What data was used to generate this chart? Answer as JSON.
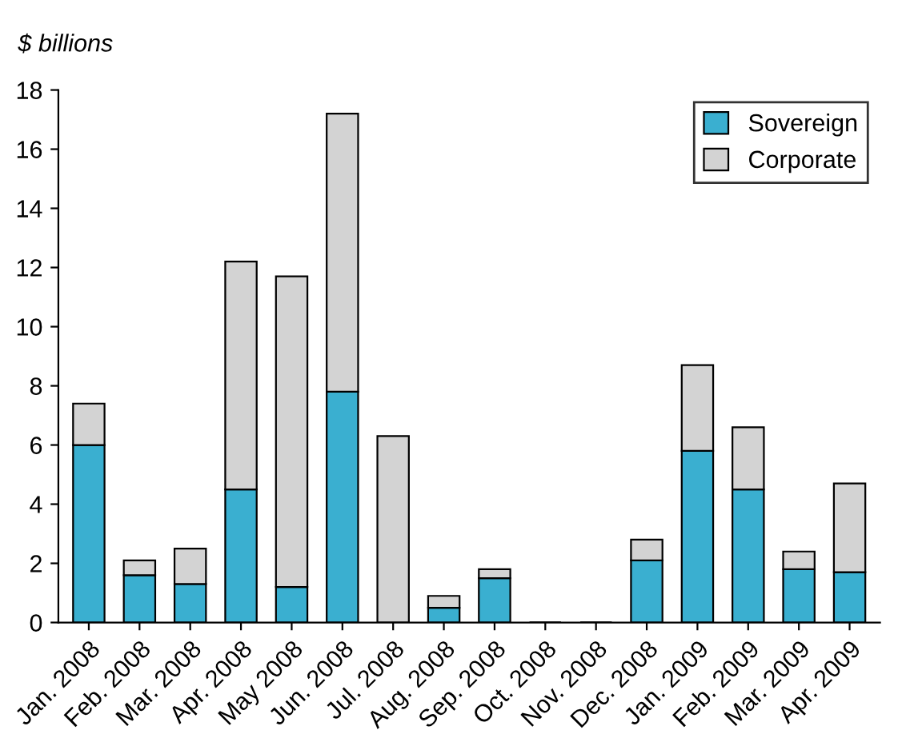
{
  "chart_data": {
    "type": "bar",
    "stacked": true,
    "ylabel": "$ billions",
    "categories": [
      "Jan. 2008",
      "Feb. 2008",
      "Mar. 2008",
      "Apr. 2008",
      "May 2008",
      "Jun. 2008",
      "Jul. 2008",
      "Aug. 2008",
      "Sep. 2008",
      "Oct. 2008",
      "Nov. 2008",
      "Dec. 2008",
      "Jan. 2009",
      "Feb. 2009",
      "Mar. 2009",
      "Apr. 2009"
    ],
    "series": [
      {
        "name": "Sovereign",
        "color": "#3aafd0",
        "values": [
          6.0,
          1.6,
          1.3,
          4.5,
          1.2,
          7.8,
          0,
          0.5,
          1.5,
          0,
          0,
          2.1,
          5.8,
          4.5,
          1.8,
          1.7
        ]
      },
      {
        "name": "Corporate",
        "color": "#d3d3d3",
        "values": [
          1.4,
          0.5,
          1.2,
          7.7,
          10.5,
          9.4,
          6.3,
          0.4,
          0.3,
          0,
          0,
          0.7,
          2.9,
          2.1,
          0.6,
          3.0
        ]
      }
    ],
    "ylim": [
      0,
      18
    ],
    "yticks": [
      0,
      2,
      4,
      6,
      8,
      10,
      12,
      14,
      16,
      18
    ],
    "grid": false,
    "legend": "top right"
  }
}
